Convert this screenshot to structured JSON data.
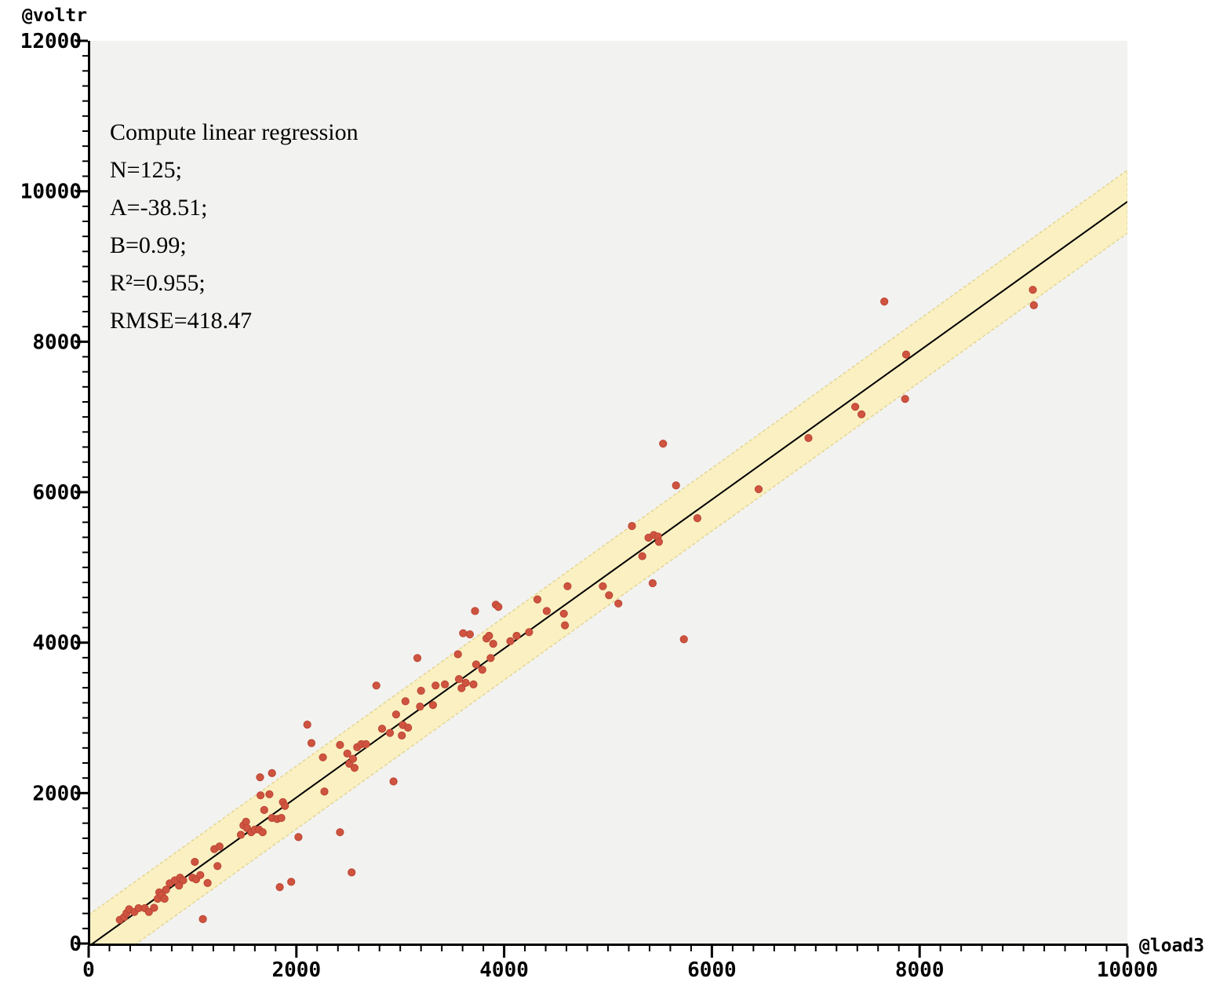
{
  "annotation": {
    "lines": [
      "Compute linear regression",
      "N=125;",
      "A=-38.51;",
      "B=0.99;",
      "R²=0.955;",
      "RMSE=418.47"
    ]
  },
  "chart_data": {
    "type": "scatter",
    "title": "",
    "xlabel": "@load3",
    "ylabel": "@voltr",
    "xlim": [
      0,
      10000
    ],
    "ylim": [
      0,
      12000
    ],
    "x_major_step": 2000,
    "x_minor_step": 200,
    "y_major_step": 2000,
    "y_minor_step": 200,
    "x_tick_labels": [
      "0",
      "2000",
      "4000",
      "6000",
      "8000",
      "10000"
    ],
    "y_tick_labels": [
      "0",
      "2000",
      "4000",
      "6000",
      "8000",
      "10000",
      "12000"
    ],
    "grid": false,
    "legend": "none",
    "regression": {
      "N": 125,
      "A": -38.51,
      "B": 0.99,
      "R2": 0.955,
      "RMSE": 418.47
    },
    "band_half_width": 418.47,
    "colors": {
      "point_fill": "#CE5440",
      "point_stroke": "#BC4534",
      "band_fill": "#FAF0C1",
      "band_edge": "#E4D58F",
      "regression_line": "#000000",
      "plot_bg": "#F2F2F0",
      "page_bg": "#FFFFFF",
      "axis": "#000000"
    },
    "points": [
      [
        300,
        315
      ],
      [
        340,
        350
      ],
      [
        365,
        405
      ],
      [
        390,
        455
      ],
      [
        440,
        420
      ],
      [
        480,
        470
      ],
      [
        540,
        470
      ],
      [
        580,
        420
      ],
      [
        630,
        475
      ],
      [
        665,
        595
      ],
      [
        680,
        680
      ],
      [
        705,
        645
      ],
      [
        730,
        595
      ],
      [
        745,
        715
      ],
      [
        780,
        800
      ],
      [
        830,
        840
      ],
      [
        870,
        770
      ],
      [
        880,
        875
      ],
      [
        910,
        840
      ],
      [
        1000,
        875
      ],
      [
        1022,
        1085
      ],
      [
        1035,
        855
      ],
      [
        1075,
        910
      ],
      [
        1100,
        325
      ],
      [
        1145,
        805
      ],
      [
        1210,
        1255
      ],
      [
        1240,
        1030
      ],
      [
        1260,
        1290
      ],
      [
        1465,
        1445
      ],
      [
        1490,
        1570
      ],
      [
        1515,
        1620
      ],
      [
        1525,
        1535
      ],
      [
        1565,
        1480
      ],
      [
        1600,
        1515
      ],
      [
        1640,
        1515
      ],
      [
        1655,
        1970
      ],
      [
        1675,
        1480
      ],
      [
        1690,
        1775
      ],
      [
        1650,
        2210
      ],
      [
        1740,
        1985
      ],
      [
        1765,
        1670
      ],
      [
        1765,
        2265
      ],
      [
        1815,
        1655
      ],
      [
        1840,
        750
      ],
      [
        1855,
        1670
      ],
      [
        1870,
        1880
      ],
      [
        1890,
        1830
      ],
      [
        1950,
        820
      ],
      [
        2020,
        1415
      ],
      [
        2105,
        2910
      ],
      [
        2145,
        2665
      ],
      [
        2255,
        2475
      ],
      [
        2270,
        2020
      ],
      [
        2420,
        2640
      ],
      [
        2420,
        1480
      ],
      [
        2490,
        2525
      ],
      [
        2510,
        2390
      ],
      [
        2532,
        945
      ],
      [
        2545,
        2455
      ],
      [
        2560,
        2335
      ],
      [
        2585,
        2610
      ],
      [
        2625,
        2650
      ],
      [
        2670,
        2650
      ],
      [
        2770,
        3430
      ],
      [
        2825,
        2855
      ],
      [
        2900,
        2800
      ],
      [
        2935,
        2155
      ],
      [
        2960,
        3045
      ],
      [
        3015,
        2765
      ],
      [
        3025,
        2905
      ],
      [
        3050,
        3220
      ],
      [
        3075,
        2870
      ],
      [
        3165,
        3795
      ],
      [
        3190,
        3150
      ],
      [
        3200,
        3360
      ],
      [
        3315,
        3170
      ],
      [
        3340,
        3430
      ],
      [
        3430,
        3445
      ],
      [
        3555,
        3845
      ],
      [
        3565,
        3515
      ],
      [
        3590,
        3395
      ],
      [
        3605,
        4125
      ],
      [
        3630,
        3465
      ],
      [
        3670,
        4110
      ],
      [
        3705,
        3445
      ],
      [
        3720,
        4420
      ],
      [
        3730,
        3710
      ],
      [
        3790,
        3640
      ],
      [
        3830,
        4055
      ],
      [
        3855,
        4090
      ],
      [
        3870,
        3795
      ],
      [
        3895,
        3985
      ],
      [
        3920,
        4505
      ],
      [
        3945,
        4475
      ],
      [
        4060,
        4020
      ],
      [
        4120,
        4090
      ],
      [
        4240,
        4140
      ],
      [
        4320,
        4575
      ],
      [
        4410,
        4420
      ],
      [
        4575,
        4385
      ],
      [
        4585,
        4230
      ],
      [
        4610,
        4750
      ],
      [
        4950,
        4750
      ],
      [
        5010,
        4630
      ],
      [
        5100,
        4520
      ],
      [
        5230,
        5550
      ],
      [
        5330,
        5150
      ],
      [
        5390,
        5395
      ],
      [
        5430,
        4790
      ],
      [
        5440,
        5430
      ],
      [
        5480,
        5410
      ],
      [
        5490,
        5340
      ],
      [
        5530,
        6645
      ],
      [
        5655,
        6090
      ],
      [
        5730,
        4045
      ],
      [
        5860,
        5655
      ],
      [
        6450,
        6040
      ],
      [
        6930,
        6720
      ],
      [
        7380,
        7135
      ],
      [
        7440,
        7035
      ],
      [
        7660,
        8535
      ],
      [
        7870,
        7830
      ],
      [
        7860,
        7240
      ],
      [
        9090,
        8690
      ],
      [
        9100,
        8485
      ]
    ]
  }
}
